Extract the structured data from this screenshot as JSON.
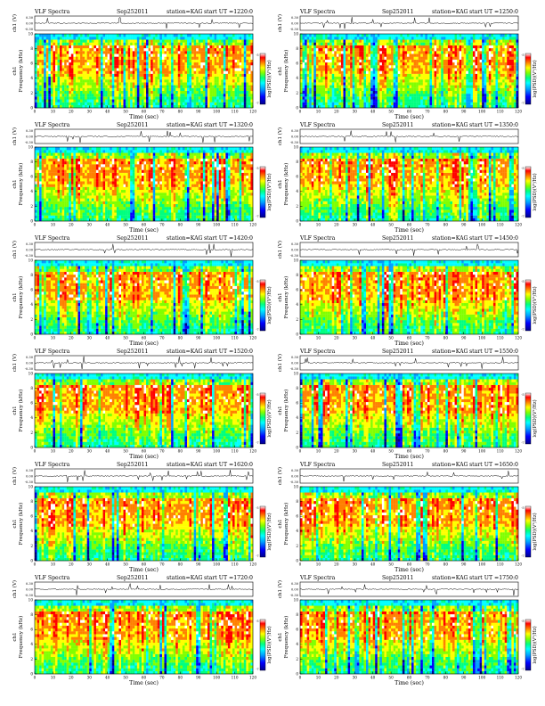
{
  "page": {
    "header_label": "VLF Spectra",
    "date": "Sep252011",
    "station": "station=KAG",
    "start_prefix": "start  UT  ="
  },
  "chart_data": [
    {
      "type": "heatmap",
      "col": 0,
      "row": 0,
      "start_ut": "1220:0"
    },
    {
      "type": "heatmap",
      "col": 1,
      "row": 0,
      "start_ut": "1250:0"
    },
    {
      "type": "heatmap",
      "col": 0,
      "row": 1,
      "start_ut": "1320:0"
    },
    {
      "type": "heatmap",
      "col": 1,
      "row": 1,
      "start_ut": "1350:0"
    },
    {
      "type": "heatmap",
      "col": 0,
      "row": 2,
      "start_ut": "1420:0"
    },
    {
      "type": "heatmap",
      "col": 1,
      "row": 2,
      "start_ut": "1450:0"
    },
    {
      "type": "heatmap",
      "col": 0,
      "row": 3,
      "start_ut": "1520:0"
    },
    {
      "type": "heatmap",
      "col": 1,
      "row": 3,
      "start_ut": "1550:0"
    },
    {
      "type": "heatmap",
      "col": 0,
      "row": 4,
      "start_ut": "1620:0"
    },
    {
      "type": "heatmap",
      "col": 1,
      "row": 4,
      "start_ut": "1650:0"
    },
    {
      "type": "heatmap",
      "col": 0,
      "row": 5,
      "start_ut": "1720:0"
    },
    {
      "type": "heatmap",
      "col": 1,
      "row": 5,
      "start_ut": "1750:0"
    }
  ],
  "axes": {
    "xlabel": "Time  (sec)",
    "ylabel": "Frequency  (kHz)",
    "ylabel_channel": "ch1",
    "trace_label": "ch1 (V)",
    "trace_ticks": [
      "0.30",
      "0.00",
      "-0.30"
    ],
    "trace_ylim": [
      -0.3,
      0.3
    ],
    "xticks": [
      0,
      10,
      20,
      30,
      40,
      50,
      60,
      70,
      80,
      90,
      100,
      110,
      120
    ],
    "xlim": [
      0,
      120
    ],
    "yticks": [
      0,
      2,
      4,
      6,
      8,
      10
    ],
    "ylim": [
      0,
      10
    ],
    "colorbar_label": "log(PSD)(V²/Hz)",
    "colorbar_ticks": [
      "-5",
      "-7"
    ],
    "colormap": [
      "#00008b",
      "#0000ff",
      "#00a0ff",
      "#00ffff",
      "#00ff80",
      "#80ff00",
      "#ffff00",
      "#ff8000",
      "#ff0000",
      "#ffffff"
    ]
  }
}
